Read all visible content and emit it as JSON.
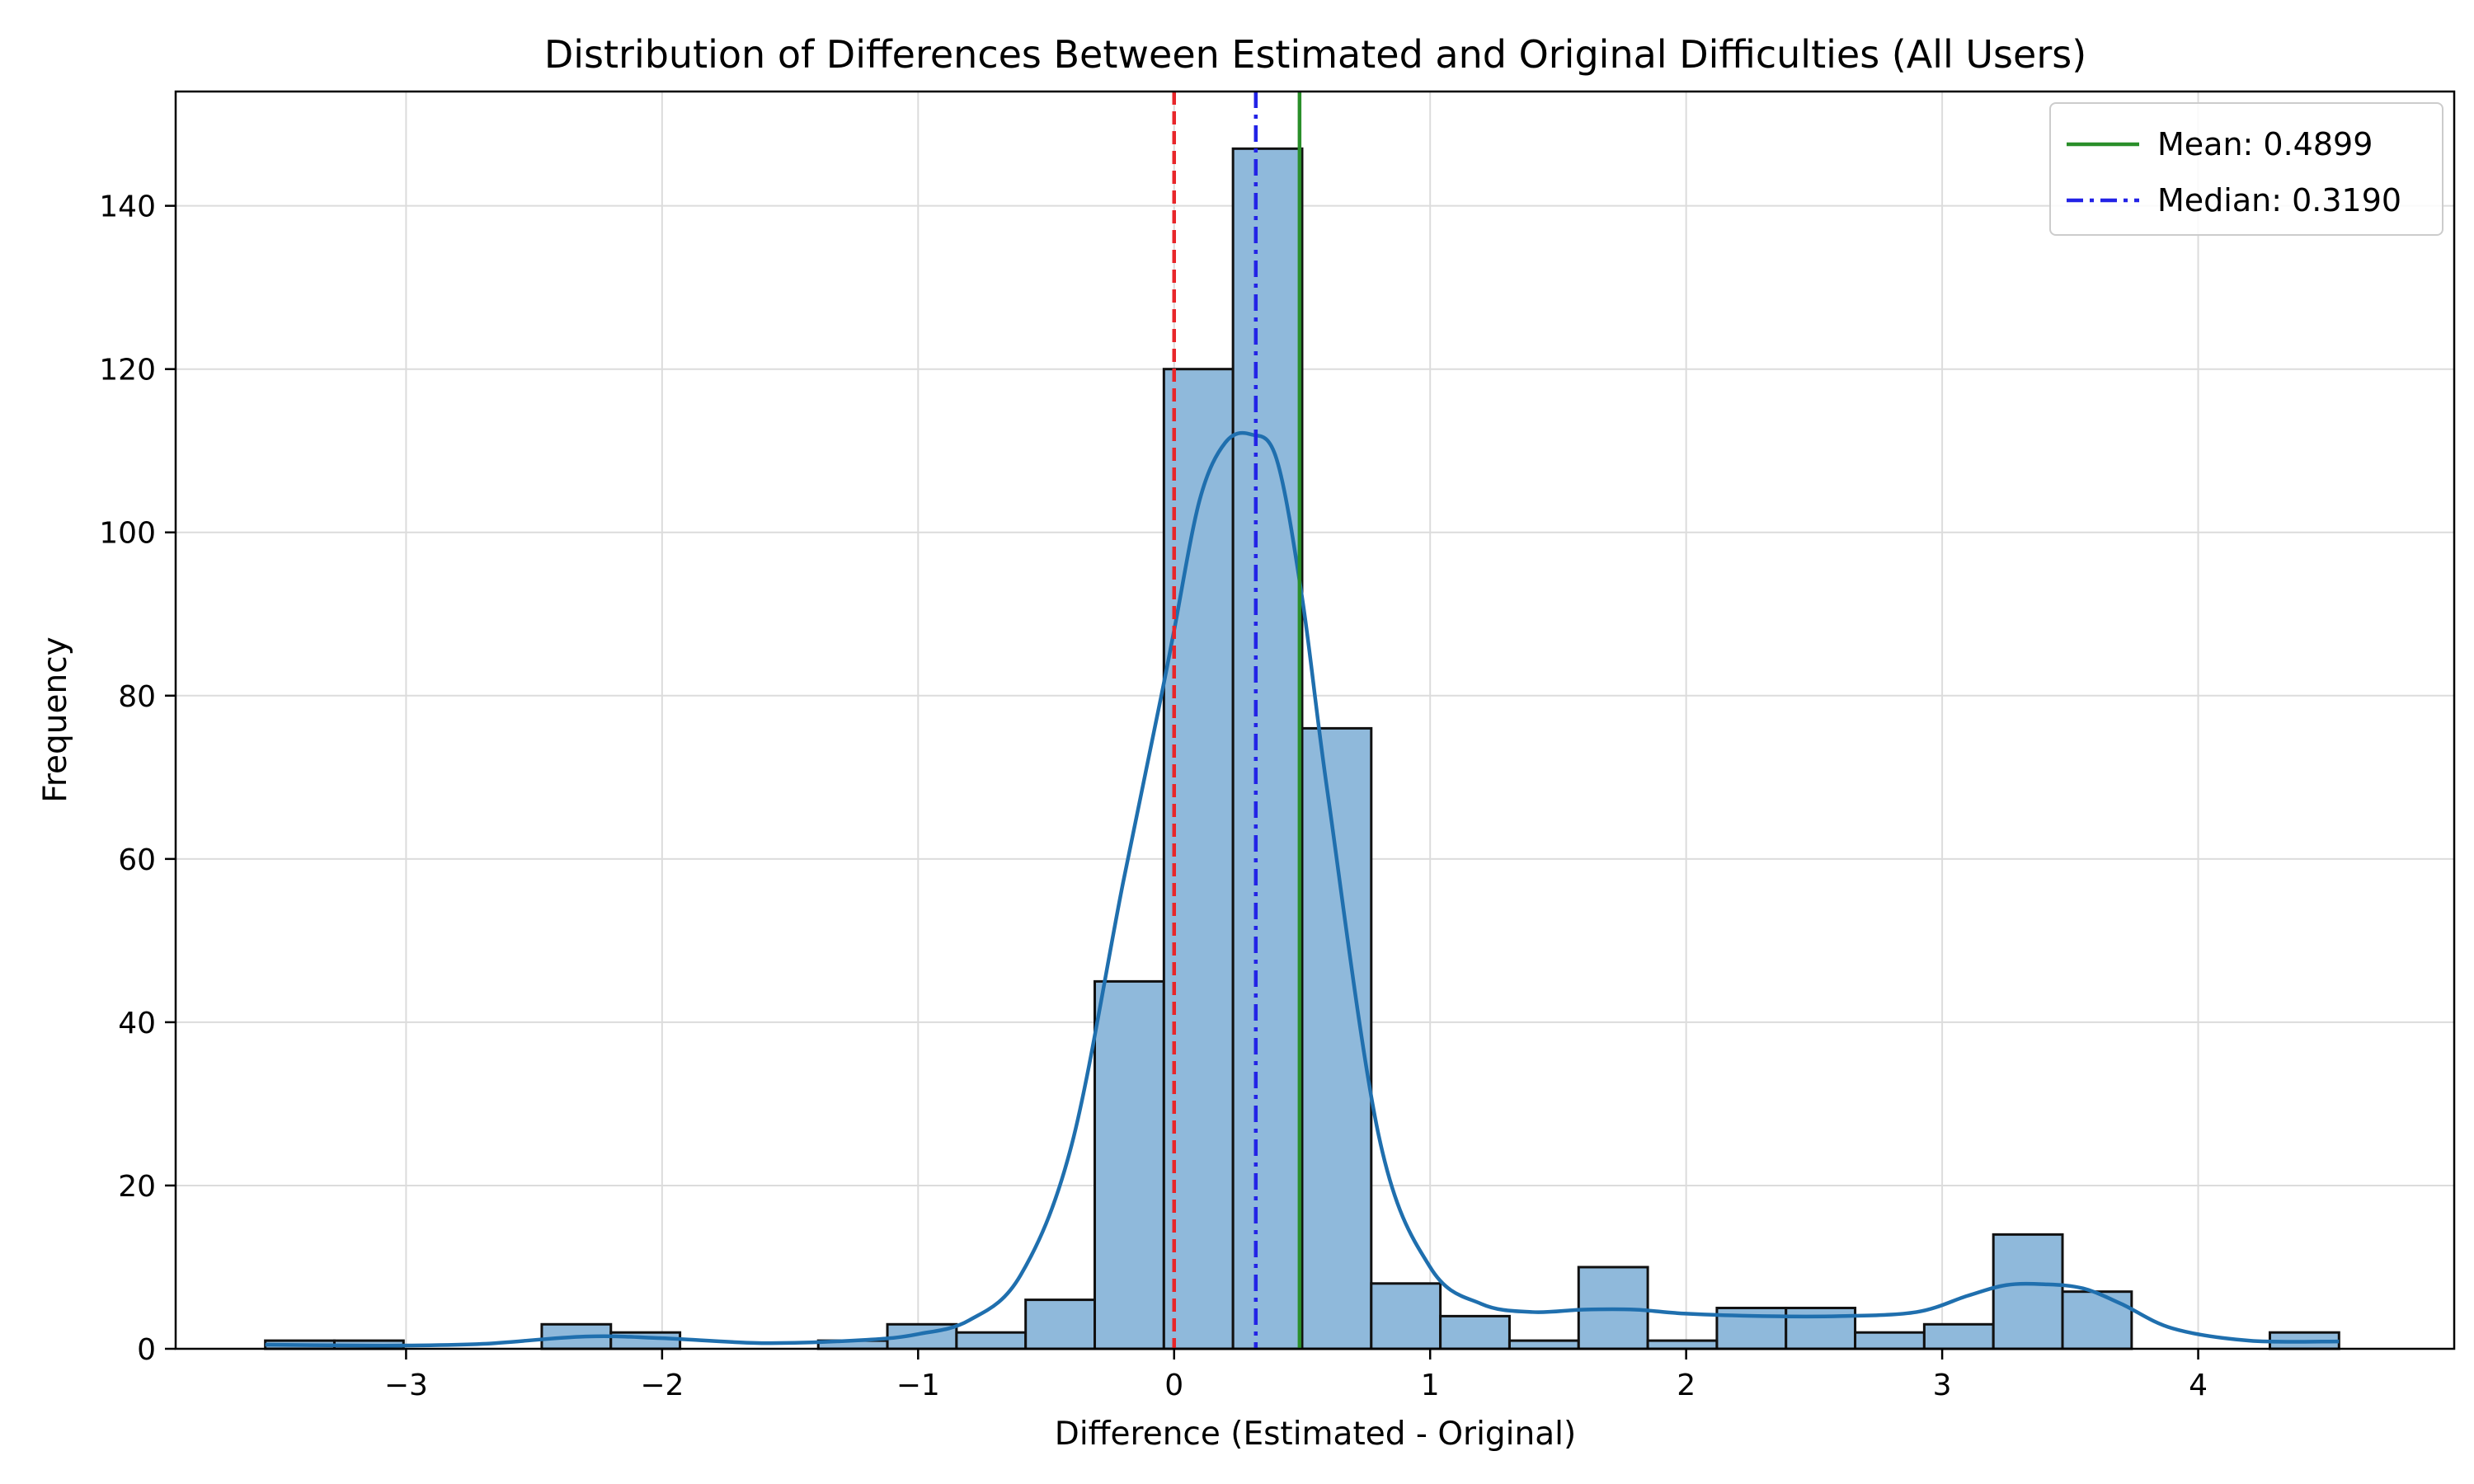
{
  "chart_data": {
    "type": "bar",
    "title": "Distribution of Differences Between Estimated and Original Difficulties (All Users)",
    "xlabel": "Difference (Estimated - Original)",
    "ylabel": "Frequency",
    "xlim": [
      -3.9,
      5.0
    ],
    "ylim": [
      0,
      154
    ],
    "xticks": [
      -3,
      -2,
      -1,
      0,
      1,
      2,
      3,
      4
    ],
    "xtick_labels": [
      "−3",
      "−2",
      "−1",
      "0",
      "1",
      "2",
      "3",
      "4"
    ],
    "yticks": [
      0,
      20,
      40,
      60,
      80,
      100,
      120,
      140
    ],
    "ytick_labels": [
      "0",
      "20",
      "40",
      "60",
      "80",
      "100",
      "120",
      "140"
    ],
    "grid": true,
    "bin_width": 0.27,
    "bins": [
      {
        "start": -3.55,
        "count": 1
      },
      {
        "start": -3.28,
        "count": 1
      },
      {
        "start": -3.01,
        "count": 0
      },
      {
        "start": -2.74,
        "count": 0
      },
      {
        "start": -2.47,
        "count": 3
      },
      {
        "start": -2.2,
        "count": 2
      },
      {
        "start": -1.93,
        "count": 0
      },
      {
        "start": -1.66,
        "count": 0
      },
      {
        "start": -1.39,
        "count": 1
      },
      {
        "start": -1.12,
        "count": 3
      },
      {
        "start": -0.85,
        "count": 2
      },
      {
        "start": -0.58,
        "count": 6
      },
      {
        "start": -0.31,
        "count": 45
      },
      {
        "start": -0.04,
        "count": 120
      },
      {
        "start": 0.23,
        "count": 147
      },
      {
        "start": 0.5,
        "count": 76
      },
      {
        "start": 0.77,
        "count": 8
      },
      {
        "start": 1.04,
        "count": 4
      },
      {
        "start": 1.31,
        "count": 1
      },
      {
        "start": 1.58,
        "count": 10
      },
      {
        "start": 1.85,
        "count": 1
      },
      {
        "start": 2.12,
        "count": 5
      },
      {
        "start": 2.39,
        "count": 5
      },
      {
        "start": 2.66,
        "count": 2
      },
      {
        "start": 2.93,
        "count": 3
      },
      {
        "start": 3.2,
        "count": 14
      },
      {
        "start": 3.47,
        "count": 7
      },
      {
        "start": 3.74,
        "count": 0
      },
      {
        "start": 4.01,
        "count": 0
      },
      {
        "start": 4.28,
        "count": 2
      }
    ],
    "kde": {
      "x": [
        -3.55,
        -3.2,
        -3.0,
        -2.7,
        -2.3,
        -2.0,
        -1.6,
        -1.2,
        -1.0,
        -0.8,
        -0.6,
        -0.4,
        -0.2,
        -0.05,
        0.0,
        0.1,
        0.2,
        0.3,
        0.4,
        0.5,
        0.6,
        0.8,
        1.0,
        1.2,
        1.4,
        1.6,
        1.8,
        2.0,
        2.3,
        2.6,
        2.9,
        3.1,
        3.25,
        3.4,
        3.55,
        3.7,
        3.9,
        4.2,
        4.55
      ],
      "y": [
        0.5,
        0.4,
        0.4,
        0.6,
        1.5,
        1.3,
        0.7,
        1.1,
        1.8,
        3.5,
        9,
        25,
        57,
        80,
        88,
        104,
        111,
        112,
        109,
        92,
        68,
        26,
        10,
        5.5,
        4.5,
        4.8,
        4.8,
        4.3,
        4.0,
        4.0,
        4.5,
        6.5,
        7.8,
        7.9,
        7.4,
        5.5,
        2.5,
        1.0,
        0.9
      ]
    },
    "reference_lines": [
      {
        "name": "zero",
        "x": 0,
        "color": "#e8262a",
        "style": "dashed"
      },
      {
        "name": "Mean: 0.4899",
        "x": 0.4899,
        "color": "#2a8f2a",
        "style": "solid"
      },
      {
        "name": "Median: 0.3190",
        "x": 0.319,
        "color": "#2323e6",
        "style": "dashdot"
      }
    ],
    "legend": {
      "placement": "top-right",
      "entries": [
        {
          "label": "Mean: 0.4899",
          "color": "#2a8f2a",
          "style": "solid"
        },
        {
          "label": "Median: 0.3190",
          "color": "#2323e6",
          "style": "dashdot"
        }
      ]
    },
    "colors": {
      "bar_fill": "#8fb9db",
      "bar_edge": "#111111",
      "kde_line": "#1f6fae"
    }
  }
}
